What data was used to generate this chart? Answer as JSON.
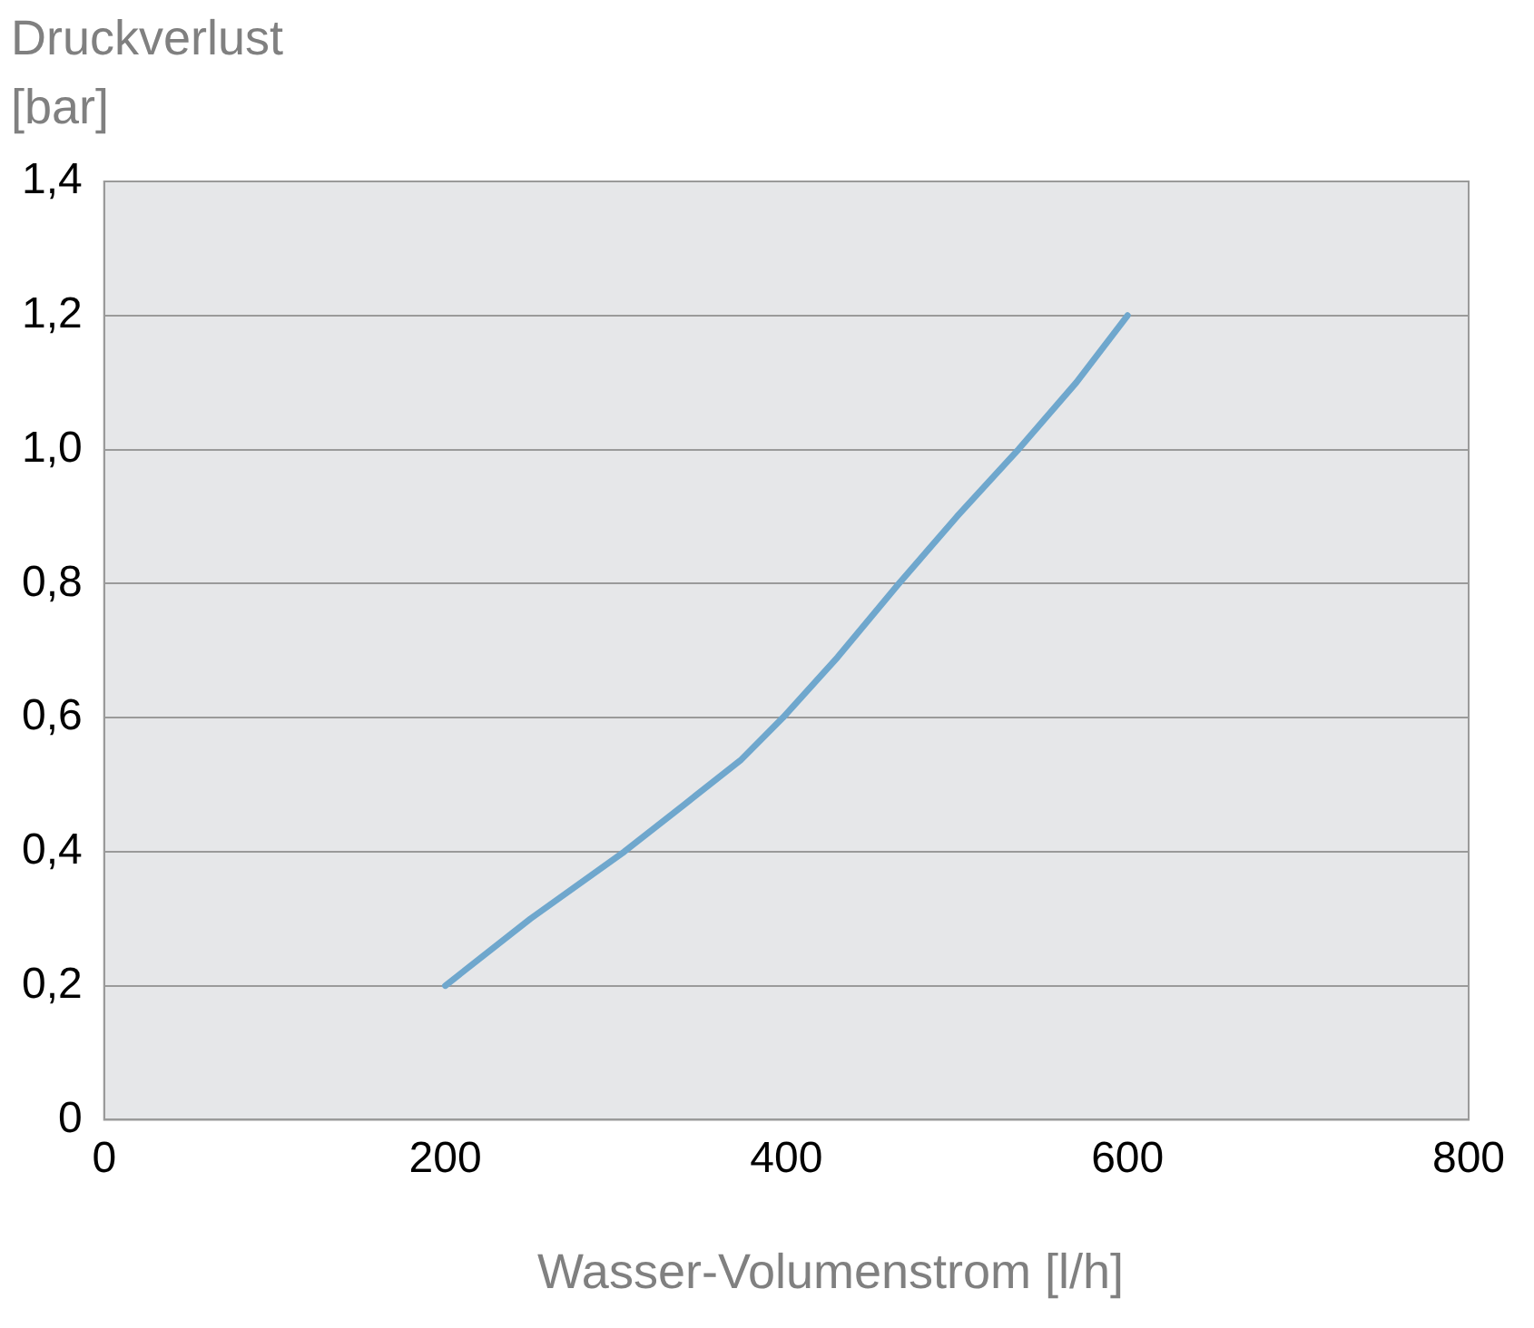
{
  "chart_data": {
    "type": "line",
    "xlabel": "Wasser-Volumenstrom [l/h]",
    "ylabel": "Druckverlust [bar]",
    "x": [
      200,
      250,
      305,
      340,
      373,
      398,
      430,
      466,
      500,
      536,
      570,
      600
    ],
    "series": [
      {
        "color": "#6fa7cd",
        "values": [
          0.2,
          0.3,
          0.4,
          0.47,
          0.536,
          0.6,
          0.69,
          0.8,
          0.9,
          1.0,
          1.1,
          1.2
        ]
      }
    ],
    "xlim": [
      0,
      800
    ],
    "xticks": [
      0,
      200,
      400,
      600,
      800
    ],
    "ylim": [
      0,
      1.4
    ],
    "yticks": [
      {
        "value": 0,
        "label": "0"
      },
      {
        "value": 0.2,
        "label": "0,2"
      },
      {
        "value": 0.4,
        "label": "0,4"
      },
      {
        "value": 0.6,
        "label": "0,6"
      },
      {
        "value": 0.8,
        "label": "0,8"
      },
      {
        "value": 1,
        "label": "1,0"
      },
      {
        "value": 1.2,
        "label": "1,2"
      },
      {
        "value": 1.4,
        "label": "1,4"
      }
    ],
    "grid": "y",
    "legend": false,
    "marker": "none",
    "line_style": "solid"
  }
}
